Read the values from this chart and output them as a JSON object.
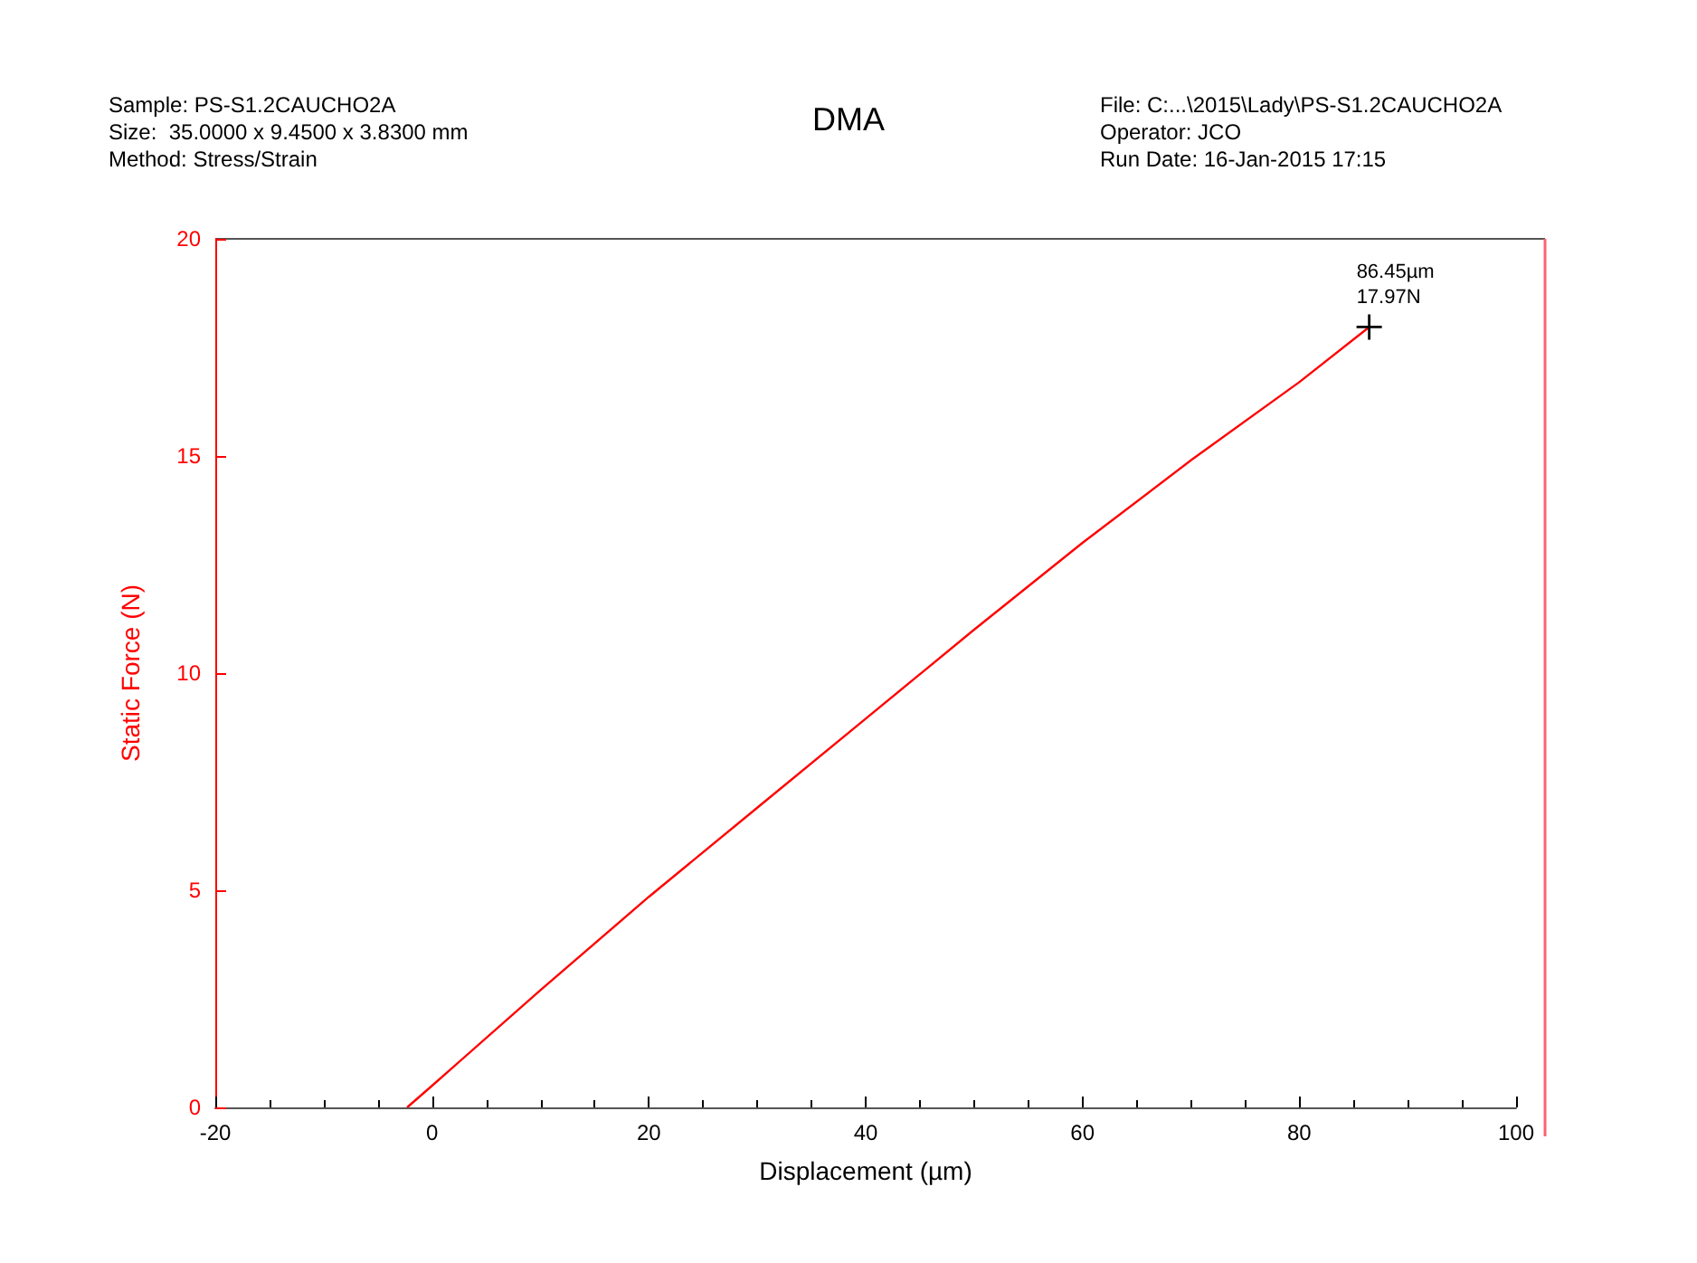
{
  "chart_data": {
    "type": "line",
    "title": "DMA",
    "xlabel": "Displacement (µm)",
    "ylabel": "Static Force (N)",
    "annotations": [
      "Sample: PS-S1.2CAUCHO2A",
      "Size:  35.0000 x 9.4500 x 3.8300 mm",
      "Method: Stress/Strain",
      "File: C:...\\2015\\Lady\\PS-S1.2CAUCHO2A",
      "Operator: JCO",
      "Run Date: 16-Jan-2015 17:15",
      {
        "text": "86.45µm\n17.97N",
        "x": 86.45,
        "y": 17.97
      }
    ],
    "series": [
      {
        "color": "#ff0000",
        "x": [
          -2.3,
          0,
          10,
          20,
          30,
          40,
          50,
          60,
          70,
          80,
          86.45
        ],
        "values": [
          0,
          0.5,
          2.7,
          4.85,
          6.9,
          8.95,
          11.0,
          13.0,
          14.9,
          16.7,
          17.97
        ]
      }
    ],
    "xlim": [
      -20,
      100
    ],
    "xticks": [
      -20,
      0,
      20,
      40,
      60,
      80,
      100
    ],
    "ylim": [
      0,
      20
    ],
    "yticks": [
      0,
      5,
      10,
      15,
      20
    ],
    "grid": false,
    "marker": "none",
    "line_style": "solid"
  }
}
